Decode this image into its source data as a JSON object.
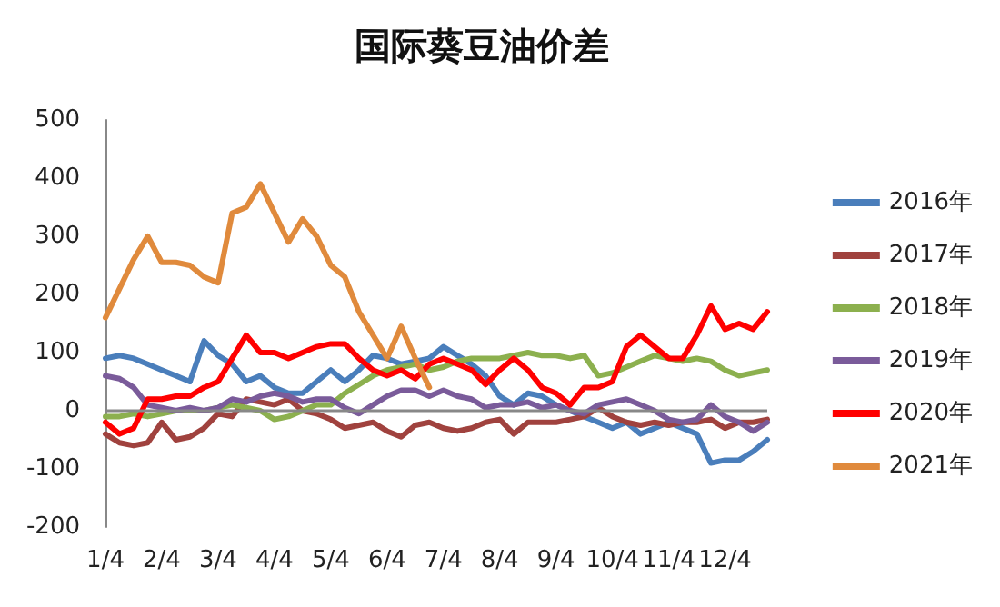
{
  "chart_data": {
    "type": "line",
    "title": "国际葵豆油价差",
    "categories": [
      "1/4",
      null,
      null,
      null,
      "2/4",
      null,
      null,
      null,
      "3/4",
      null,
      null,
      null,
      "4/4",
      null,
      null,
      null,
      "5/4",
      null,
      null,
      null,
      "6/4",
      null,
      null,
      null,
      "7/4",
      null,
      null,
      null,
      "8/4",
      null,
      null,
      null,
      "9/4",
      null,
      null,
      null,
      "10/4",
      null,
      null,
      null,
      "11/4",
      null,
      null,
      null,
      "12/4",
      null,
      null,
      null
    ],
    "series": [
      {
        "name": "2016年",
        "color": "#4a7ebb",
        "values": [
          90,
          95,
          90,
          80,
          70,
          60,
          50,
          120,
          95,
          80,
          50,
          60,
          40,
          30,
          30,
          50,
          70,
          50,
          70,
          95,
          90,
          80,
          85,
          90,
          110,
          95,
          80,
          60,
          25,
          10,
          30,
          25,
          10,
          0,
          -10,
          -20,
          -30,
          -20,
          -40,
          -30,
          -20,
          -30,
          -40,
          -90,
          -85,
          -85,
          -70,
          -50
        ]
      },
      {
        "name": "2017年",
        "color": "#a0423e",
        "values": [
          -40,
          -55,
          -60,
          -55,
          -20,
          -50,
          -45,
          -30,
          -5,
          -10,
          20,
          15,
          10,
          20,
          0,
          -5,
          -15,
          -30,
          -25,
          -20,
          -35,
          -45,
          -25,
          -20,
          -30,
          -35,
          -30,
          -20,
          -15,
          -40,
          -20,
          -20,
          -20,
          -15,
          -10,
          5,
          -10,
          -20,
          -25,
          -20,
          -25,
          -20,
          -20,
          -15,
          -30,
          -20,
          -20,
          -15
        ]
      },
      {
        "name": "2018年",
        "color": "#8cb04e",
        "values": [
          -10,
          -10,
          -5,
          -10,
          -5,
          0,
          0,
          0,
          5,
          10,
          5,
          0,
          -15,
          -10,
          0,
          10,
          10,
          30,
          45,
          60,
          70,
          75,
          80,
          70,
          75,
          85,
          90,
          90,
          90,
          95,
          100,
          95,
          95,
          90,
          95,
          60,
          65,
          75,
          85,
          95,
          90,
          85,
          90,
          85,
          70,
          60,
          65,
          70
        ]
      },
      {
        "name": "2019年",
        "color": "#7a5b9a",
        "values": [
          60,
          55,
          40,
          10,
          5,
          0,
          5,
          0,
          5,
          20,
          15,
          25,
          30,
          25,
          15,
          20,
          20,
          5,
          -5,
          10,
          25,
          35,
          35,
          25,
          35,
          25,
          20,
          5,
          10,
          10,
          15,
          5,
          10,
          0,
          -5,
          10,
          15,
          20,
          10,
          0,
          -15,
          -20,
          -15,
          10,
          -10,
          -20,
          -35,
          -20
        ]
      },
      {
        "name": "2020年",
        "color": "#ff0000",
        "values": [
          -20,
          -40,
          -30,
          20,
          20,
          25,
          25,
          40,
          50,
          90,
          130,
          100,
          100,
          90,
          100,
          110,
          115,
          115,
          90,
          70,
          60,
          70,
          55,
          80,
          90,
          80,
          70,
          45,
          70,
          90,
          70,
          40,
          30,
          10,
          40,
          40,
          50,
          110,
          130,
          110,
          90,
          90,
          130,
          180,
          140,
          150,
          140,
          170
        ]
      },
      {
        "name": "2021年",
        "color": "#e08a3c",
        "values": [
          160,
          210,
          260,
          300,
          255,
          255,
          250,
          230,
          220,
          340,
          350,
          390,
          340,
          290,
          330,
          300,
          250,
          230,
          170,
          130,
          90,
          145,
          90,
          40,
          null,
          null,
          null,
          null,
          null,
          null,
          null,
          null,
          null,
          null,
          null,
          null,
          null,
          null,
          null,
          null,
          null,
          null,
          null,
          null,
          null,
          null,
          null,
          null
        ]
      }
    ],
    "ylim": [
      -200,
      500
    ],
    "yticks": [
      -200,
      -100,
      0,
      100,
      200,
      300,
      400,
      500
    ],
    "grid": false,
    "ref_lines": [
      {
        "axis": "y",
        "value": 0,
        "color": "#888888"
      }
    ],
    "legend": "right",
    "marker": "none",
    "line_style": "solid"
  }
}
